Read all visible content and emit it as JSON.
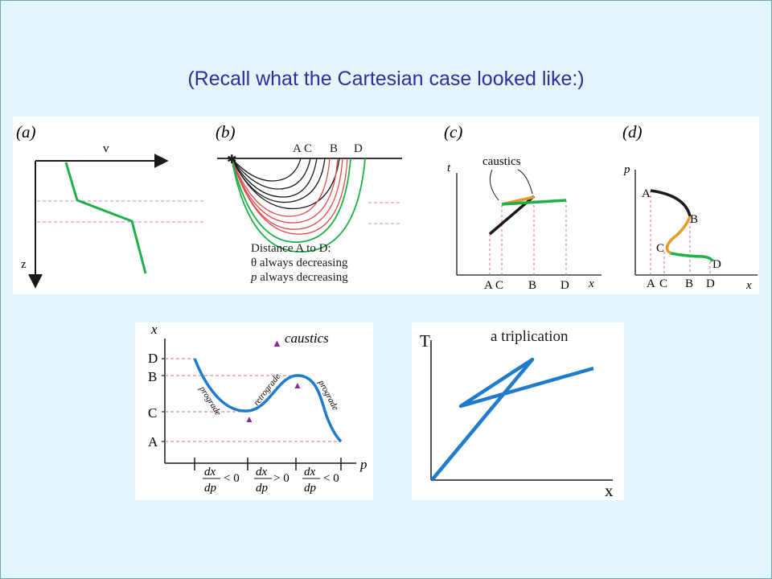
{
  "slide": {
    "title": "(Recall what the Cartesian case looked like:)"
  },
  "top_figure": {
    "panel_a": {
      "label": "(a)",
      "x_axis": "v",
      "z_axis": "z"
    },
    "panel_b": {
      "label": "(b)",
      "points": [
        "A",
        "C",
        "B",
        "D"
      ],
      "note_line1": "Distance A to D:",
      "note_line2": "θ always decreasing",
      "note_line3_var": "p",
      "note_line3_rest": " always decreasing"
    },
    "panel_c": {
      "label": "(c)",
      "y_axis": "t",
      "x_axis": "x",
      "caustics": "caustics",
      "ticks": [
        "A",
        "C",
        "B",
        "D"
      ]
    },
    "panel_d": {
      "label": "(d)",
      "y_axis": "p",
      "x_axis": "x",
      "curve_points": [
        "A",
        "B",
        "C",
        "D"
      ],
      "ticks": [
        "A",
        "C",
        "B",
        "D"
      ]
    }
  },
  "bottom_left": {
    "y_axis": "x",
    "x_axis": "p",
    "legend": "caustics",
    "y_ticks": [
      "D",
      "B",
      "C",
      "A"
    ],
    "branches": [
      "prograde",
      "retrograde",
      "prograde"
    ],
    "dx": "dx",
    "dp": "dp",
    "rel1": "< 0",
    "rel2": "> 0",
    "rel3": "< 0"
  },
  "bottom_right": {
    "title": "a triplication",
    "y_axis": "T",
    "x_axis": "x"
  },
  "colors": {
    "title": "#2b2fa0",
    "green": "#1fb04a",
    "orange": "#e79a2a",
    "red": "#e0474c",
    "black": "#1a1a1a",
    "blue": "#1f7ccb",
    "purple": "#8a2a98",
    "dashed_purple": "#cc88cc",
    "dashed_red": "#e66e72"
  }
}
